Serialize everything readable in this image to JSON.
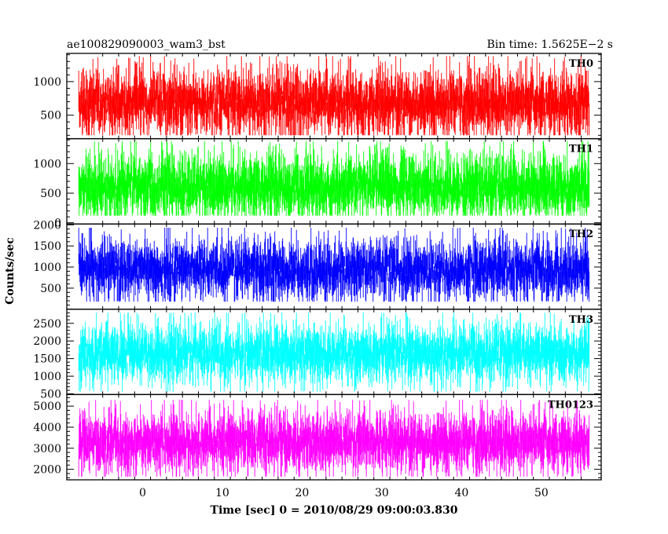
{
  "header": {
    "left_title": "ae100829090003_wam3_bst",
    "right_title": "Bin time: 1.5625E−2 s"
  },
  "chart_data": {
    "type": "line",
    "title": "ae100829090003_wam3_bst",
    "subtitle": "Bin time: 1.5625E−2 s",
    "xlabel": "Time [sec] 0 = 2010/08/29 09:00:03.830",
    "ylabel": "Counts/sec",
    "xlim": [
      -9.5,
      57.5
    ],
    "x_ticks": [
      0,
      10,
      20,
      30,
      40,
      50
    ],
    "x_tick_labels": [
      "0",
      "10",
      "20",
      "30",
      "40",
      "50"
    ],
    "data_x_range": [
      -8,
      56
    ],
    "bin_time_s": 0.015625,
    "grid": false,
    "legend": "none",
    "note_series": "dense noise-like light curve per energy band; visual mean and spread approximated",
    "panels": [
      {
        "name": "TH0",
        "color": "#ff0000",
        "ylim": [
          150,
          1420
        ],
        "yticks": [
          500,
          1000
        ],
        "ytick_labels": [
          "500",
          "1000"
        ],
        "approx_mean": 680,
        "approx_min": 200,
        "approx_max": 1380
      },
      {
        "name": "TH1",
        "color": "#00ff00",
        "ylim": [
          -20,
          1420
        ],
        "yticks": [
          0,
          500,
          1000
        ],
        "ytick_labels": [
          "0",
          "500",
          "1000"
        ],
        "approx_mean": 600,
        "approx_min": 120,
        "approx_max": 1380
      },
      {
        "name": "TH2",
        "color": "#0000ff",
        "ylim": [
          0,
          2020
        ],
        "yticks": [
          500,
          1000,
          1500,
          2000
        ],
        "ytick_labels": [
          "500",
          "1000",
          "1500",
          "2000"
        ],
        "approx_mean": 940,
        "approx_min": 180,
        "approx_max": 1930
      },
      {
        "name": "TH3",
        "color": "#00ffff",
        "ylim": [
          480,
          2900
        ],
        "yticks": [
          500,
          1000,
          1500,
          2000,
          2500
        ],
        "ytick_labels": [
          "500",
          "1000",
          "1500",
          "2000",
          "2500"
        ],
        "approx_mean": 1650,
        "approx_min": 560,
        "approx_max": 2800
      },
      {
        "name": "TH0123",
        "color": "#ff00ff",
        "ylim": [
          1500,
          5550
        ],
        "yticks": [
          2000,
          3000,
          4000,
          5000
        ],
        "ytick_labels": [
          "2000",
          "3000",
          "4000",
          "5000"
        ],
        "approx_mean": 3300,
        "approx_min": 1650,
        "approx_max": 5300
      }
    ]
  }
}
